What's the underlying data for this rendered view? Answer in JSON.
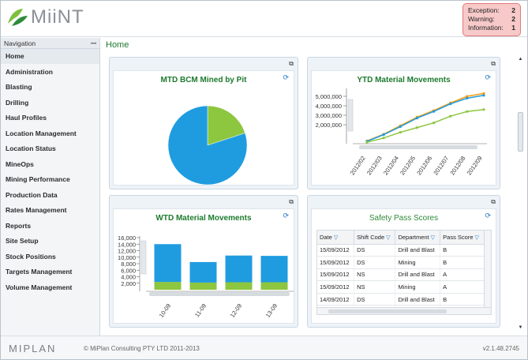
{
  "header": {
    "logo_text": "MiiNT",
    "alerts": [
      {
        "label": "Exception:",
        "count": "2"
      },
      {
        "label": "Warning:",
        "count": "2"
      },
      {
        "label": "Information:",
        "count": "1"
      }
    ]
  },
  "sidebar": {
    "title": "Navigation",
    "pin_icon": "pin-icon",
    "items": [
      {
        "label": "Home"
      },
      {
        "label": "Administration"
      },
      {
        "label": "Blasting"
      },
      {
        "label": "Drilling"
      },
      {
        "label": "Haul Profiles"
      },
      {
        "label": "Location Management"
      },
      {
        "label": "Location Status"
      },
      {
        "label": "MineOps"
      },
      {
        "label": "Mining Performance"
      },
      {
        "label": "Production Data"
      },
      {
        "label": "Rates Management"
      },
      {
        "label": "Reports"
      },
      {
        "label": "Site Setup"
      },
      {
        "label": "Stock Positions"
      },
      {
        "label": "Targets Management"
      },
      {
        "label": "Volume Management"
      }
    ]
  },
  "main": {
    "title": "Home",
    "panels": {
      "mtd": {
        "title": "MTD BCM Mined by Pit"
      },
      "ytd": {
        "title": "YTD Material Movements"
      },
      "wtd": {
        "title": "WTD Material Movements"
      },
      "safety": {
        "title": "Safety Pass Scores",
        "columns": [
          "Date",
          "Shift Code",
          "Department",
          "Pass Score"
        ],
        "rows": [
          [
            "15/09/2012",
            "DS",
            "Drill and Blast",
            "B"
          ],
          [
            "15/09/2012",
            "DS",
            "Mining",
            "B"
          ],
          [
            "15/09/2012",
            "NS",
            "Drill and Blast",
            "A"
          ],
          [
            "15/09/2012",
            "NS",
            "Mining",
            "A"
          ],
          [
            "14/09/2012",
            "DS",
            "Drill and Blast",
            "B"
          ],
          [
            "14/09/2012",
            "DS",
            "Mining",
            ""
          ]
        ]
      }
    }
  },
  "chart_data": [
    {
      "type": "pie",
      "title": "MTD BCM Mined by Pit",
      "slices": [
        {
          "value": 0.8,
          "color": "#1f9ce0"
        },
        {
          "value": 0.2,
          "color": "#8dc63f"
        }
      ]
    },
    {
      "type": "line",
      "title": "YTD Material Movements",
      "categories": [
        "2012/02",
        "2012/03",
        "2012/04",
        "2012/05",
        "2012/06",
        "2012/07",
        "2012/08",
        "2012/09"
      ],
      "yticks": [
        "5,000,000",
        "4,000,000",
        "3,000,000",
        "2,000,000"
      ],
      "ylim": [
        0,
        5500000
      ],
      "series": [
        {
          "color": "#f39c12",
          "values": [
            300000,
            1000000,
            1900000,
            2800000,
            3500000,
            4300000,
            5000000,
            5300000
          ]
        },
        {
          "color": "#1f9ce0",
          "values": [
            250000,
            950000,
            1800000,
            2700000,
            3400000,
            4200000,
            4800000,
            5100000
          ]
        },
        {
          "color": "#8dc63f",
          "values": [
            150000,
            600000,
            1200000,
            1700000,
            2200000,
            2900000,
            3400000,
            3600000
          ]
        }
      ]
    },
    {
      "type": "bar",
      "title": "WTD Material Movements",
      "categories": [
        "10-09",
        "11-09",
        "12-09",
        "13-09"
      ],
      "yticks": [
        "16,000",
        "14,000",
        "12,000",
        "10,000",
        "8,000",
        "6,000",
        "4,000",
        "2,000"
      ],
      "ylim": [
        0,
        16000
      ],
      "series": [
        {
          "color": "#8dc63f",
          "values": [
            2400,
            2200,
            2300,
            2300
          ]
        },
        {
          "color": "#1f9ce0",
          "values": [
            11600,
            6300,
            8200,
            8100
          ]
        }
      ]
    }
  ],
  "footer": {
    "logo_text": "MIPLAN",
    "copyright": "© MiPlan Consulting PTY LTD 2011-2013",
    "version": "v2.1.48.2745"
  }
}
